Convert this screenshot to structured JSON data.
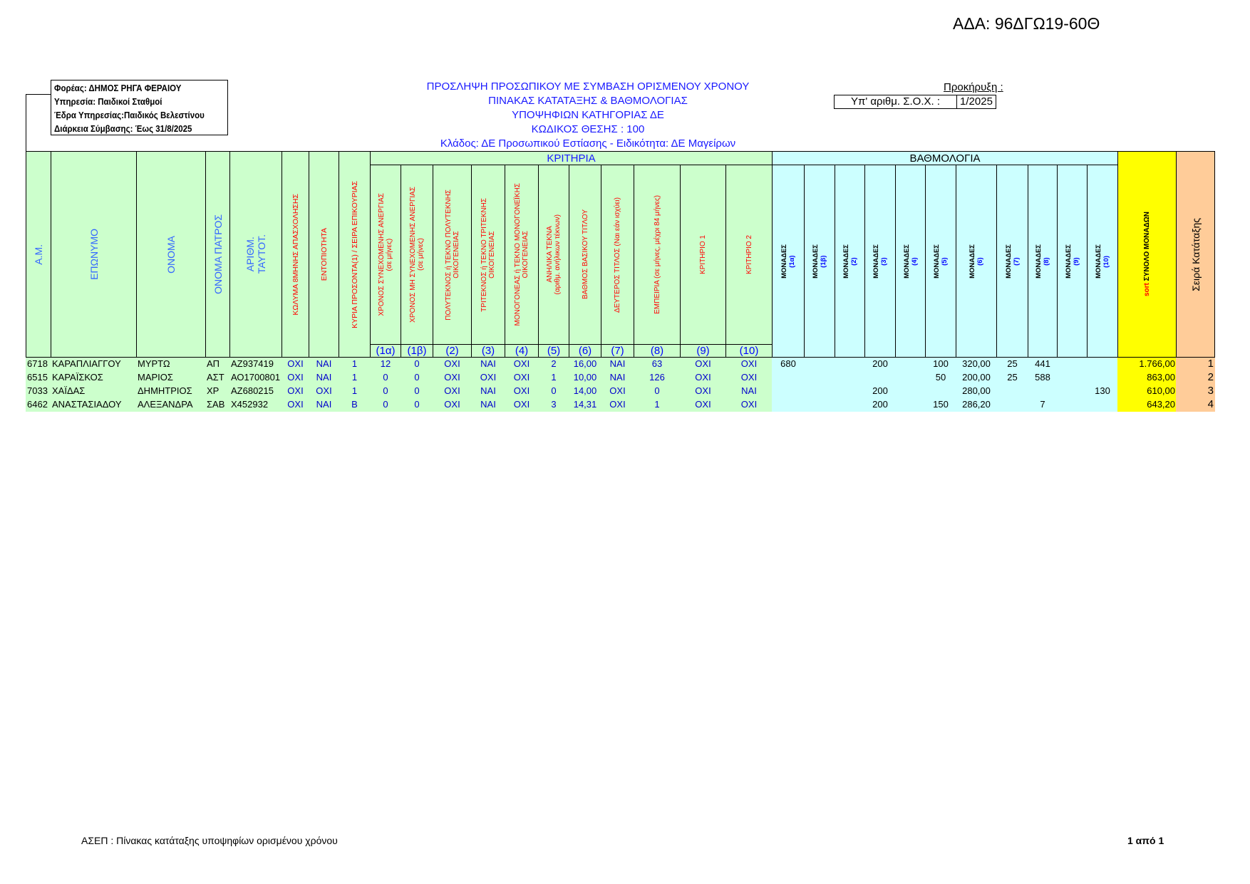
{
  "ada": "ΑΔΑ: 96ΔΓΩ19-60Θ",
  "info_box": [
    "Φορέας: ΔΗΜΟΣ ΡΗΓΑ ΦΕΡΑΙΟΥ",
    "Υπηρεσία: Παιδικοί Σταθμοί",
    "Έδρα Υπηρεσίας:Παιδικός Βελεστίνου",
    "Διάρκεια Σύμβασης: Έως 31/8/2025"
  ],
  "titles": [
    "ΠΡΟΣΛΗΨΗ ΠΡΟΣΩΠΙΚΟΥ ΜΕ ΣΥΜΒΑΣΗ ΟΡΙΣΜΕΝΟΥ ΧΡΟΝΟΥ",
    "ΠΙΝΑΚΑΣ ΚΑΤΑΤΑΞΗΣ & ΒΑΘΜΟΛΟΓΙΑΣ",
    "ΥΠΟΨΗΦΙΩΝ ΚΑΤΗΓΟΡΙΑΣ ΔΕ",
    "ΚΩΔΙΚΟΣ ΘΕΣΗΣ : 100",
    "Κλάδος: ΔΕ Προσωπικού Εστίασης - Ειδικότητα: ΔΕ Μαγείρων"
  ],
  "prokirixi_label": "Προκήρυξη :",
  "sox_label": "Υπ' αριθμ. Σ.Ο.Χ. :",
  "sox_value": "1/2025",
  "colors": {
    "green": "#ccffcc",
    "light_blue": "#ccffff",
    "yellow": "#ffff00",
    "peach": "#ffcc99",
    "header_blue": "#3366ff",
    "header_red": "#ff0000",
    "value_blue": "#0000cc"
  },
  "table": {
    "group_criteria": "ΚΡΙΤΗΡΙΑ",
    "group_points": "ΒΑΘΜΟΛΟΓΙΑ",
    "left_headers": [
      "Α.Μ.",
      "ΕΠΩΝΥΜΟ",
      "ΟΝΟΜΑ",
      "ΟΝΟΜΑ ΠΑΤΡΟΣ",
      "ΑΡΙΘΜ.\nΤΑΥΤΟΤ.",
      "ΚΩΛΥΜΑ 8ΜΗΝΗΣ ΑΠΑΣΧΟΛΗΣΗΣ",
      "ΕΝΤΟΠΙΟΤΗΤΑ",
      "ΚΥΡΙΑ ΠΡΟΣΟΝΤΑ(1) / ΣΕΙΡΑ ΕΠΙΚΟΥΡΙΑΣ"
    ],
    "criteria_headers": [
      {
        "label": "ΧΡΟΝΟΣ ΣΥΝΕΧΟΜΕΝΗΣ ΑΝΕΡΓΙΑΣ\n(σε μήνες)",
        "code": "(1α)"
      },
      {
        "label": "ΧΡΟΝΟΣ ΜΗ ΣΥΝΕΧΟΜΕΝΗΣ ΑΝΕΡΓΙΑΣ\n(σε μήνες)",
        "code": "(1β)"
      },
      {
        "label": "ΠΟΛΥΤΕΚΝΟΣ ή ΤΕΚΝΟ ΠΟΛΥΤΕΚΝΗΣ\nΟΙΚΟΓΕΝΕΙΑΣ",
        "code": "(2)"
      },
      {
        "label": "ΤΡΙΤΕΚΝΟΣ ή ΤΕΚΝΟ ΤΡΙΤΕΚΝΗΣ\nΟΙΚΟΓΕΝΕΙΑΣ",
        "code": "(3)"
      },
      {
        "label": "ΜΟΝΟΓΟΝΕΑΣ ή ΤΕΚΝΟ ΜΟΝΟΓΟΝΕΪΚΗΣ\nΟΙΚΟΓΕΝΕΙΑΣ",
        "code": "(4)"
      },
      {
        "label": "ΑΝΗΛΙΚΑ ΤΕΚΝΑ\n(αριθμ. ανήλικων τέκνων)",
        "code": "(5)"
      },
      {
        "label": "ΒΑΘΜΟΣ ΒΑΣΙΚΟΥ ΤΙΤΛΟΥ",
        "code": "(6)"
      },
      {
        "label": "ΔΕΥΤΕΡΟΣ ΤΙΤΛΟΣ (Ναι εάν ισχύει)",
        "code": "(7)"
      },
      {
        "label": "ΕΜΠΕΙΡΙΑ (σε μήνες, μέχρι 84 μήνες)",
        "code": "(8)"
      },
      {
        "label": "ΚΡΙΤΗΡΙΟ 1",
        "code": "(9)"
      },
      {
        "label": "ΚΡΙΤΗΡΙΟ 2",
        "code": "(10)"
      }
    ],
    "points_headers": [
      {
        "label": "ΜΟΝΑΔΕΣ",
        "code": "(1α)"
      },
      {
        "label": "ΜΟΝΑΔΕΣ",
        "code": "(1β)"
      },
      {
        "label": "ΜΟΝΑΔΕΣ",
        "code": "(2)"
      },
      {
        "label": "ΜΟΝΑΔΕΣ",
        "code": "(3)"
      },
      {
        "label": "ΜΟΝΑΔΕΣ",
        "code": "(4)"
      },
      {
        "label": "ΜΟΝΑΔΕΣ",
        "code": "(5)"
      },
      {
        "label": "ΜΟΝΑΔΕΣ",
        "code": "(6)"
      },
      {
        "label": "ΜΟΝΑΔΕΣ",
        "code": "(7)"
      },
      {
        "label": "ΜΟΝΑΔΕΣ",
        "code": "(8)"
      },
      {
        "label": "ΜΟΝΑΔΕΣ",
        "code": "(9)"
      },
      {
        "label": "ΜΟΝΑΔΕΣ",
        "code": "(10)"
      }
    ],
    "total_header": {
      "prefix": "sort",
      "label": " ΣΥΝΟΛΟ ΜΟΝΑΔΩΝ"
    },
    "rank_header": "Σειρά Κατάταξης",
    "rows": [
      {
        "cells": [
          "6718",
          "ΚΑΡΑΠΛΙΑΓΓΟΥ",
          "ΜΥΡΤΩ",
          "ΑΠ",
          "ΑΖ937419",
          "ΟΧΙ",
          "ΝΑΙ",
          "1",
          "12",
          "0",
          "ΟΧΙ",
          "ΝΑΙ",
          "ΟΧΙ",
          "2",
          "16,00",
          "ΝΑΙ",
          "63",
          "ΟΧΙ",
          "ΟΧΙ",
          "680",
          "",
          "",
          "200",
          "",
          "100",
          "320,00",
          "25",
          "441",
          "",
          "",
          "1.766,00",
          "1"
        ]
      },
      {
        "cells": [
          "6515",
          "ΚΑΡΑΪΣΚΟΣ",
          "ΜΑΡΙΟΣ",
          "ΑΣΤ",
          "ΑΟ1700801",
          "ΟΧΙ",
          "ΝΑΙ",
          "1",
          "0",
          "0",
          "ΟΧΙ",
          "ΟΧΙ",
          "ΟΧΙ",
          "1",
          "10,00",
          "ΝΑΙ",
          "126",
          "ΟΧΙ",
          "ΟΧΙ",
          "",
          "",
          "",
          "",
          "",
          "50",
          "200,00",
          "25",
          "588",
          "",
          "",
          "863,00",
          "2"
        ]
      },
      {
        "cells": [
          "7033",
          "ΧΑΪΔΑΣ",
          "ΔΗΜΗΤΡΙΟΣ",
          "ΧΡ",
          "ΑΖ680215",
          "ΟΧΙ",
          "ΟΧΙ",
          "1",
          "0",
          "0",
          "ΟΧΙ",
          "ΝΑΙ",
          "ΟΧΙ",
          "0",
          "14,00",
          "ΟΧΙ",
          "0",
          "ΟΧΙ",
          "ΝΑΙ",
          "",
          "",
          "",
          "200",
          "",
          "",
          "280,00",
          "",
          "",
          "",
          "130",
          "610,00",
          "3"
        ]
      },
      {
        "cells": [
          "6462",
          "ΑΝΑΣΤΑΣΙΑΔΟΥ",
          "ΑΛΕΞΑΝΔΡΑ",
          "ΣΑΒ",
          "Χ452932",
          "ΟΧΙ",
          "ΝΑΙ",
          "Β",
          "0",
          "0",
          "ΟΧΙ",
          "ΝΑΙ",
          "ΟΧΙ",
          "3",
          "14,31",
          "ΟΧΙ",
          "1",
          "ΟΧΙ",
          "ΟΧΙ",
          "",
          "",
          "",
          "200",
          "",
          "150",
          "286,20",
          "",
          "7",
          "",
          "",
          "643,20",
          "4"
        ]
      }
    ]
  },
  "footer": {
    "left": "ΑΣΕΠ : Πίνακας κατάταξης  υποψηφίων ορισμένου χρόνου",
    "right": "1  από 1"
  }
}
